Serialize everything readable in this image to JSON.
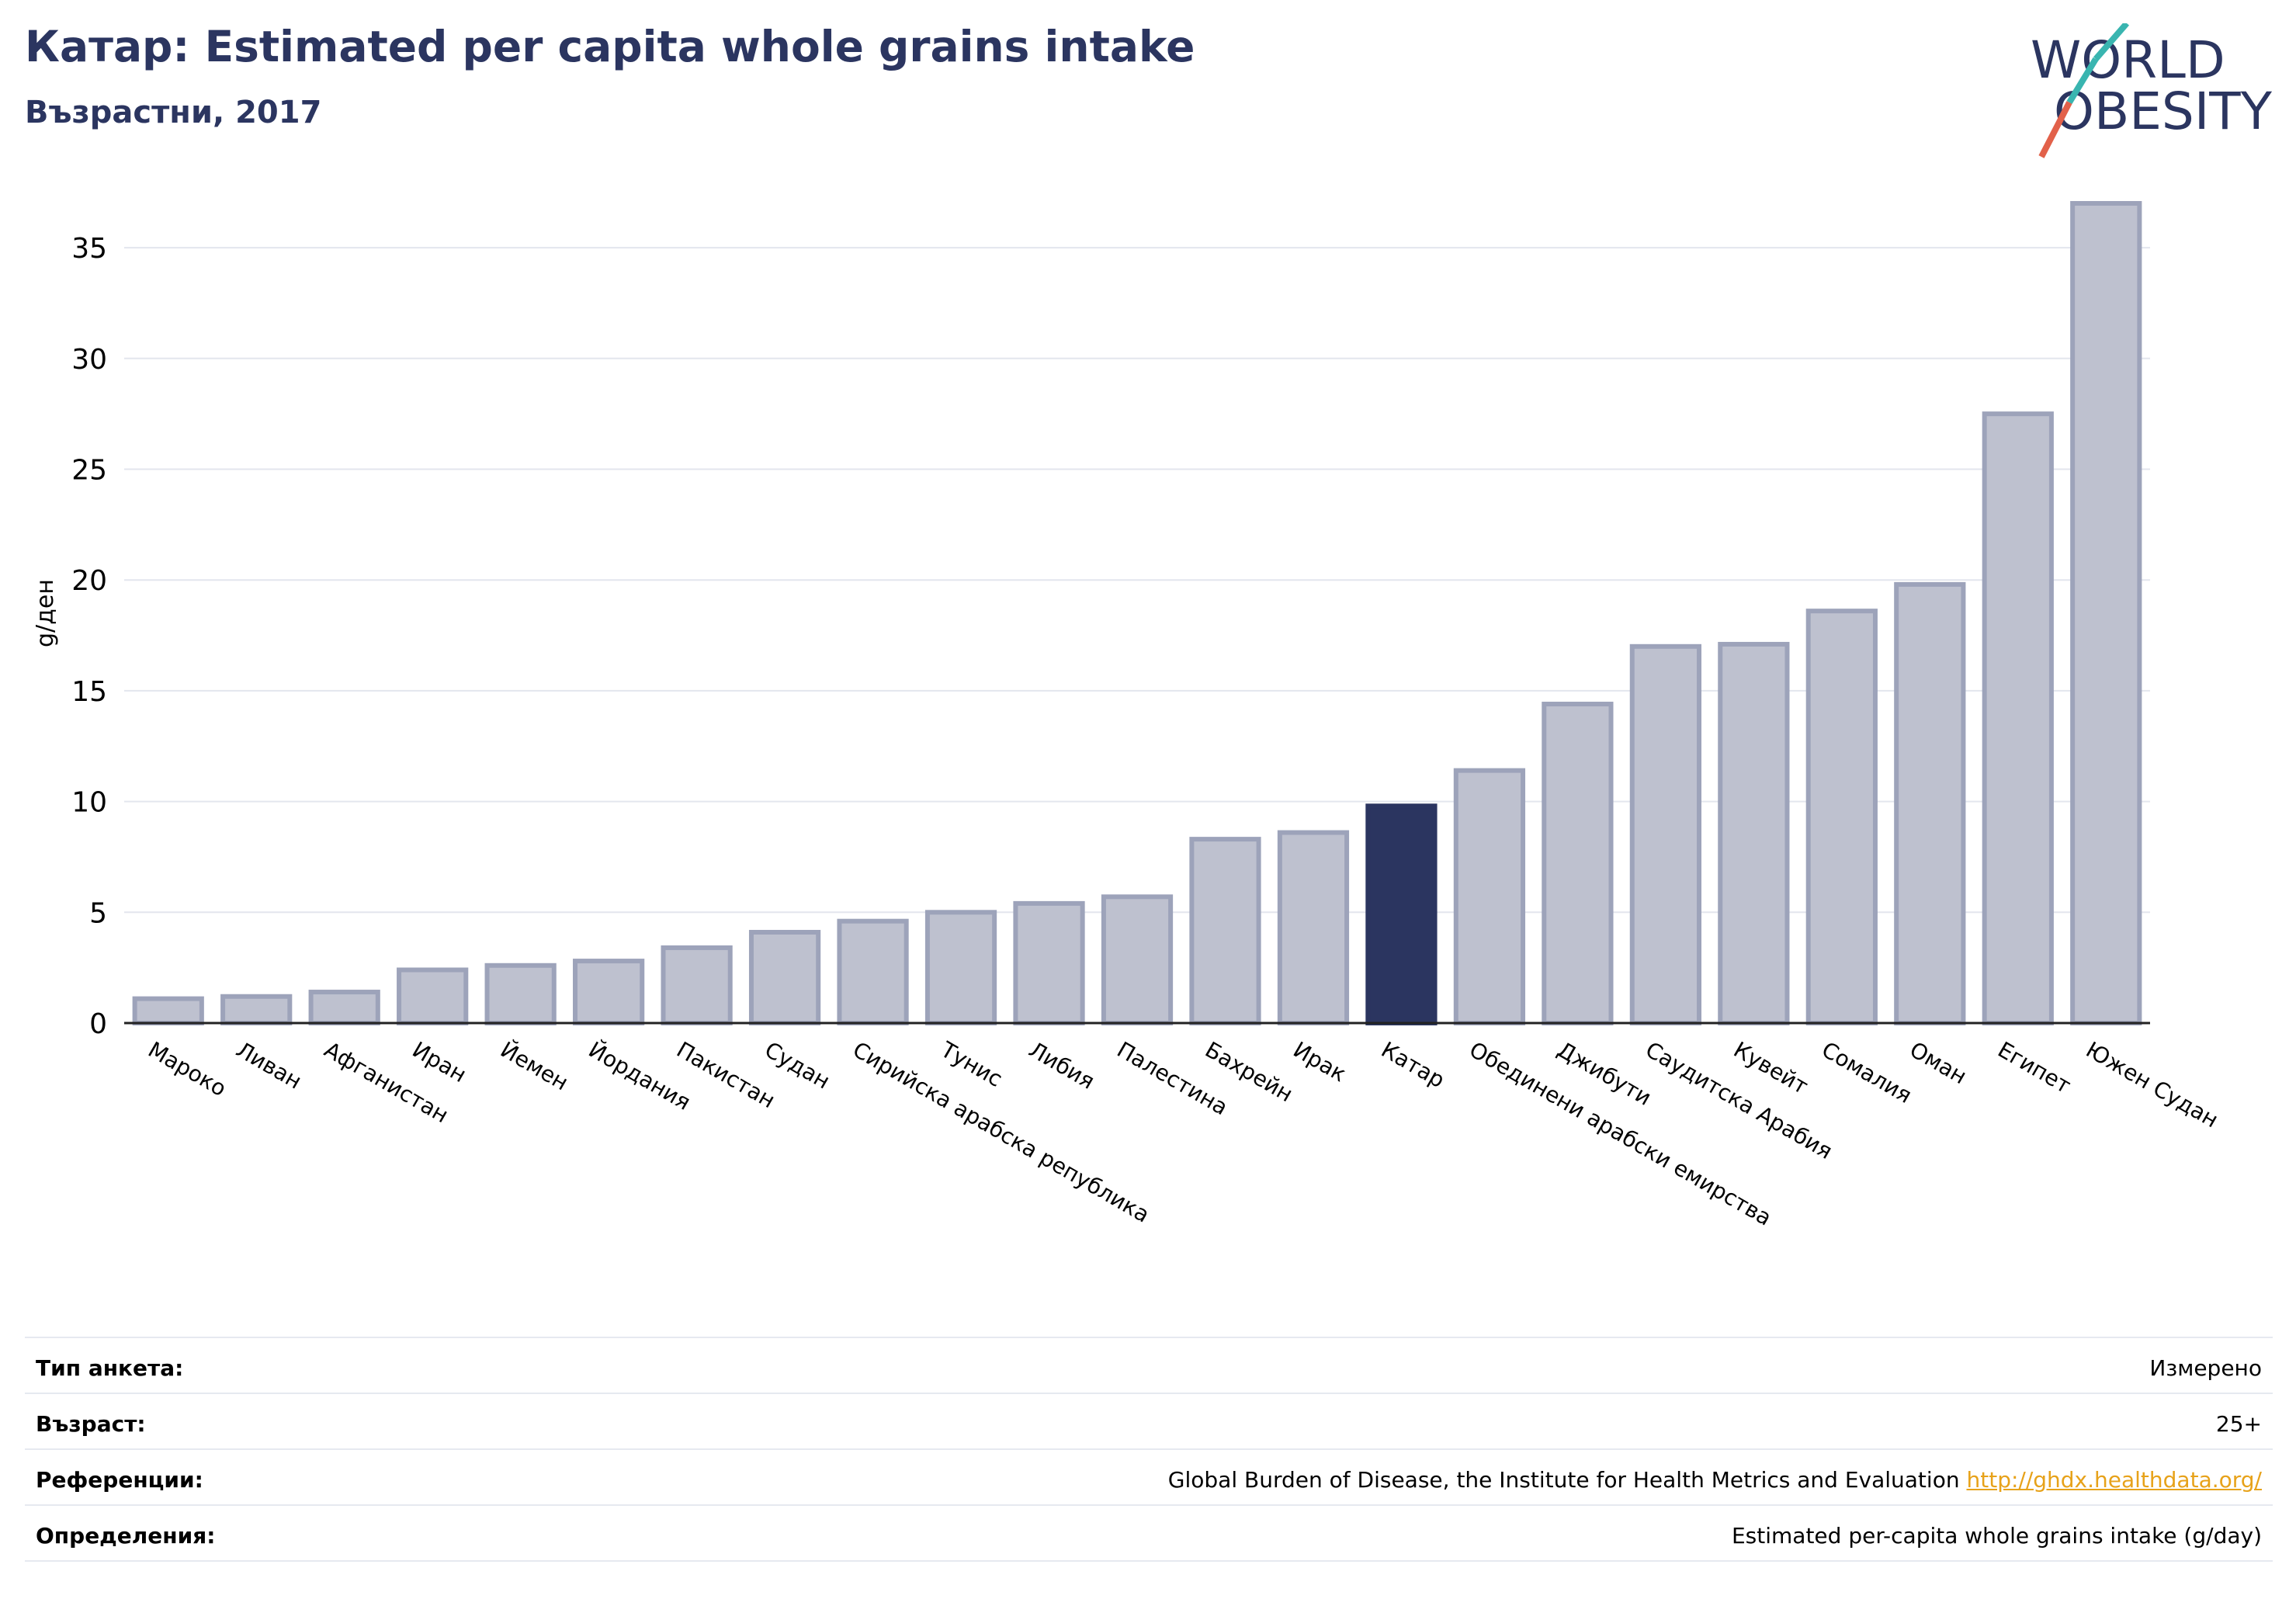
{
  "header": {
    "title": "Катар: Estimated per capita whole grains intake",
    "subtitle": "Възрастни, 2017"
  },
  "logo": {
    "line1": "WORLD",
    "line2": "OBESITY"
  },
  "colors": {
    "accent": "#2b3560",
    "bar": "#bec1cf",
    "bar_stroke": "#9da3ba",
    "link": "#e7a21a",
    "logo_teal": "#39b5b0",
    "logo_red": "#e2614a"
  },
  "chart_data": {
    "type": "bar",
    "ylabel": "g/ден",
    "ylim": [
      0,
      37
    ],
    "yticks": [
      0,
      5,
      10,
      15,
      20,
      25,
      30,
      35
    ],
    "grid": true,
    "highlight": "Катар",
    "categories": [
      "Мароко",
      "Ливан",
      "Афганистан",
      "Иран",
      "Йемен",
      "Йордания",
      "Пакистан",
      "Судан",
      "Сирийска арабска република",
      "Тунис",
      "Либия",
      "Палестина",
      "Бахрейн",
      "Ирак",
      "Катар",
      "Обединени арабски емирства",
      "Джибути",
      "Саудитска Арабия",
      "Кувейт",
      "Сомалия",
      "Оман",
      "Египет",
      "Южен Судан"
    ],
    "values": [
      1.1,
      1.2,
      1.4,
      2.4,
      2.6,
      2.8,
      3.4,
      4.1,
      4.6,
      5.0,
      5.4,
      5.7,
      8.3,
      8.6,
      9.8,
      11.4,
      14.4,
      17.0,
      17.1,
      18.6,
      19.8,
      27.5,
      37.0
    ]
  },
  "footer": {
    "rows": [
      {
        "label": "Тип анкета:",
        "value": "Измерено"
      },
      {
        "label": "Възраст:",
        "value": "25+"
      },
      {
        "label": "Референции:",
        "value": "Global Burden of Disease, the Institute for Health Metrics and Evaluation",
        "link": "http://ghdx.healthdata.org/"
      },
      {
        "label": "Определения:",
        "value": "Estimated per-capita whole grains intake (g/day)"
      }
    ]
  }
}
